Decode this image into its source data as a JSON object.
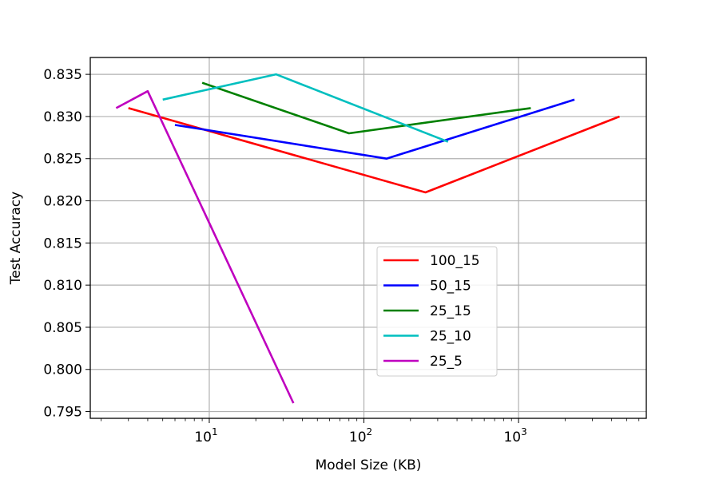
{
  "chart_data": {
    "type": "line",
    "title": "",
    "xlabel": "Model Size (KB)",
    "ylabel": "Test Accuracy",
    "xscale": "log",
    "xlim": [
      1.7,
      6700
    ],
    "ylim": [
      0.7942,
      0.837
    ],
    "grid": true,
    "legend_position": "center-right",
    "yticks": [
      0.795,
      0.8,
      0.805,
      0.81,
      0.815,
      0.82,
      0.825,
      0.83,
      0.835
    ],
    "ytick_labels": [
      "0.795",
      "0.800",
      "0.805",
      "0.810",
      "0.815",
      "0.820",
      "0.825",
      "0.830",
      "0.835"
    ],
    "xticks": [
      {
        "value": 10,
        "base": "10",
        "exp": "1"
      },
      {
        "value": 100,
        "base": "10",
        "exp": "2"
      },
      {
        "value": 1000,
        "base": "10",
        "exp": "3"
      }
    ],
    "series": [
      {
        "name": "100_15",
        "color": "#ff0000",
        "x": [
          3,
          250,
          4500
        ],
        "y": [
          0.831,
          0.821,
          0.83
        ]
      },
      {
        "name": "50_15",
        "color": "#0000ff",
        "x": [
          6,
          140,
          2300
        ],
        "y": [
          0.829,
          0.825,
          0.832
        ]
      },
      {
        "name": "25_15",
        "color": "#008000",
        "x": [
          9,
          80,
          1200
        ],
        "y": [
          0.834,
          0.828,
          0.831
        ]
      },
      {
        "name": "25_10",
        "color": "#00bfbf",
        "x": [
          5,
          27,
          350
        ],
        "y": [
          0.832,
          0.835,
          0.827
        ]
      },
      {
        "name": "25_5",
        "color": "#bf00bf",
        "x": [
          2.5,
          4,
          35
        ],
        "y": [
          0.831,
          0.833,
          0.796
        ]
      }
    ]
  }
}
